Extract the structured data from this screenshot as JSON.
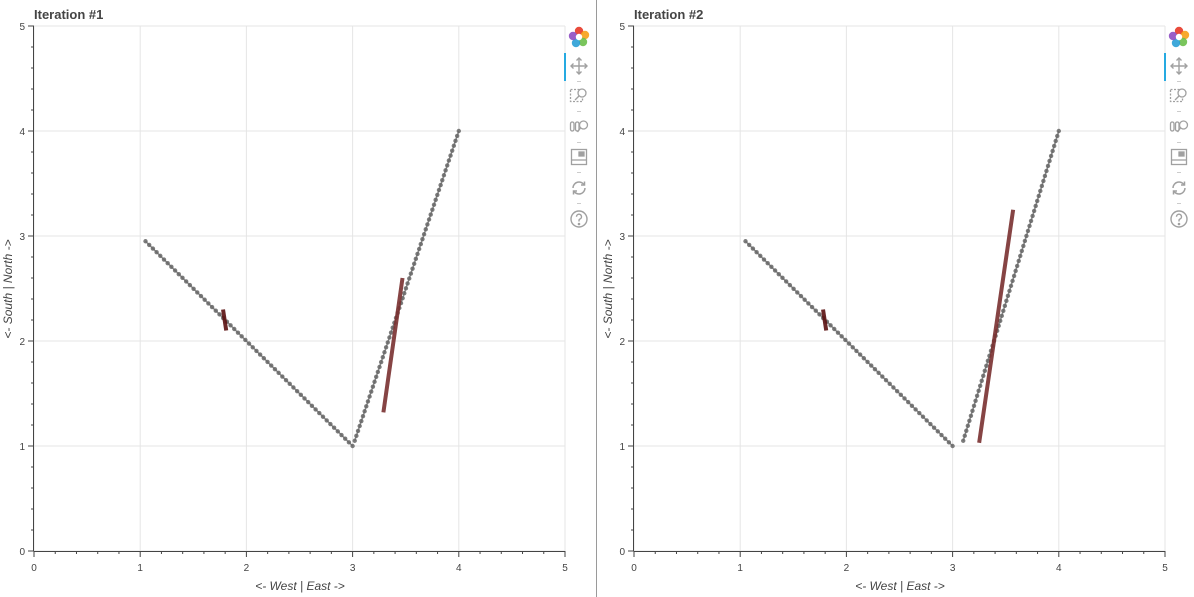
{
  "chart_data": [
    {
      "type": "line",
      "title": "Iteration #1",
      "xlabel": "<- West  |  East ->",
      "ylabel": "<- South  |  North ->",
      "xlim": [
        0,
        5
      ],
      "ylim": [
        0,
        5
      ],
      "xticks": [
        "0",
        "1",
        "2",
        "3",
        "4",
        "5"
      ],
      "yticks": [
        "0",
        "1",
        "2",
        "3",
        "4",
        "5"
      ],
      "grid": true,
      "series": [
        {
          "style": "dotted-path",
          "color": "#666666",
          "x": [
            1.05,
            3.0
          ],
          "y": [
            2.95,
            1.0
          ]
        },
        {
          "style": "dotted-path",
          "color": "#666666",
          "x": [
            3.02,
            4.0
          ],
          "y": [
            1.05,
            4.0
          ]
        },
        {
          "style": "segment",
          "color": "#5a1010",
          "x": [
            1.78,
            1.81
          ],
          "y": [
            2.3,
            2.1
          ]
        },
        {
          "style": "segment",
          "color": "#7a3030",
          "x": [
            3.29,
            3.47
          ],
          "y": [
            1.32,
            2.6
          ]
        }
      ]
    },
    {
      "type": "line",
      "title": "Iteration #2",
      "xlabel": "<- West  |  East ->",
      "ylabel": "<- South  |  North ->",
      "xlim": [
        0,
        5
      ],
      "ylim": [
        0,
        5
      ],
      "xticks": [
        "0",
        "1",
        "2",
        "3",
        "4",
        "5"
      ],
      "yticks": [
        "0",
        "1",
        "2",
        "3",
        "4",
        "5"
      ],
      "grid": true,
      "series": [
        {
          "style": "dotted-path",
          "color": "#666666",
          "x": [
            1.05,
            3.0
          ],
          "y": [
            2.95,
            1.0
          ]
        },
        {
          "style": "dotted-path",
          "color": "#666666",
          "x": [
            3.1,
            4.0
          ],
          "y": [
            1.05,
            4.0
          ]
        },
        {
          "style": "segment",
          "color": "#5a1010",
          "x": [
            1.78,
            1.81
          ],
          "y": [
            2.3,
            2.1
          ]
        },
        {
          "style": "segment",
          "color": "#7a3030",
          "x": [
            3.25,
            3.57
          ],
          "y": [
            1.03,
            3.25
          ]
        }
      ]
    }
  ],
  "toolbar": {
    "tools": [
      {
        "icon": "bokeh-logo-icon",
        "active": false
      },
      {
        "icon": "pan-icon",
        "active": true
      },
      {
        "icon": "box-zoom-icon",
        "active": false
      },
      {
        "icon": "wheel-zoom-icon",
        "active": false
      },
      {
        "icon": "save-icon",
        "active": false
      },
      {
        "icon": "reset-icon",
        "active": false
      },
      {
        "icon": "help-icon",
        "active": false
      }
    ]
  },
  "colors": {
    "grid": "#e5e5e5",
    "axis": "#444444",
    "toolbar_active": "#26aae1",
    "path_dots": "#666666"
  }
}
